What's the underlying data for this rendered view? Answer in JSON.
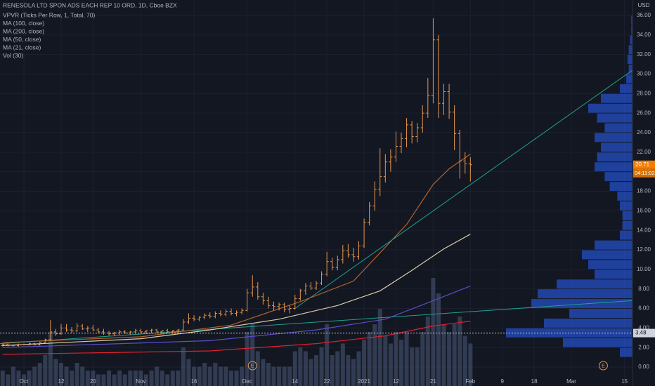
{
  "chart_data": {
    "type": "ohlc",
    "title": "RENESOLA LTD SPON ADS EACH REP 10 ORD, 1D, Cboe BZX",
    "indicators": [
      "VPVR (Ticks Per Row, 1, Total, 70)",
      "MA (100, close)",
      "MA (200, close)",
      "MA (50, close)",
      "MA (21, close)",
      "Vol (30)"
    ],
    "currency": "USD",
    "color": "#e8964a",
    "start_index": -4,
    "ohlc": [
      [
        2.2,
        2.4,
        2.1,
        2.3
      ],
      [
        2.3,
        2.4,
        2.1,
        2.2
      ],
      [
        2.2,
        2.3,
        2.1,
        2.2
      ],
      [
        2.2,
        2.4,
        2.1,
        2.3
      ],
      [
        2.3,
        2.4,
        2.2,
        2.3
      ],
      [
        2.3,
        2.5,
        2.2,
        2.4
      ],
      [
        2.4,
        2.5,
        2.2,
        2.3
      ],
      [
        2.3,
        2.6,
        2.2,
        2.5
      ],
      [
        2.5,
        2.9,
        2.4,
        2.8
      ],
      [
        2.8,
        4.8,
        2.7,
        3.6
      ],
      [
        3.6,
        3.9,
        3.2,
        3.4
      ],
      [
        3.4,
        4.4,
        3.3,
        4.0
      ],
      [
        4.0,
        4.4,
        3.6,
        3.8
      ],
      [
        3.8,
        4.1,
        3.5,
        3.7
      ],
      [
        3.7,
        4.5,
        3.6,
        4.2
      ],
      [
        4.2,
        4.4,
        3.8,
        3.9
      ],
      [
        3.9,
        4.2,
        3.6,
        4.0
      ],
      [
        4.0,
        4.3,
        3.7,
        3.8
      ],
      [
        3.8,
        4.0,
        3.5,
        3.6
      ],
      [
        3.6,
        3.9,
        3.3,
        3.5
      ],
      [
        3.5,
        3.7,
        3.2,
        3.4
      ],
      [
        3.4,
        3.6,
        3.2,
        3.5
      ],
      [
        3.5,
        3.8,
        3.3,
        3.6
      ],
      [
        3.6,
        3.8,
        3.4,
        3.5
      ],
      [
        3.5,
        3.7,
        3.3,
        3.6
      ],
      [
        3.6,
        3.9,
        3.4,
        3.7
      ],
      [
        3.7,
        3.9,
        3.4,
        3.6
      ],
      [
        3.6,
        3.8,
        3.4,
        3.7
      ],
      [
        3.7,
        3.9,
        3.5,
        3.8
      ],
      [
        3.8,
        3.9,
        3.5,
        3.6
      ],
      [
        3.6,
        3.8,
        3.4,
        3.7
      ],
      [
        3.7,
        3.9,
        3.5,
        3.6
      ],
      [
        3.6,
        3.8,
        3.4,
        3.7
      ],
      [
        3.7,
        3.9,
        3.5,
        3.8
      ],
      [
        3.8,
        4.9,
        3.7,
        4.6
      ],
      [
        4.6,
        5.5,
        4.4,
        5.0
      ],
      [
        5.0,
        5.3,
        4.7,
        4.9
      ],
      [
        4.9,
        5.2,
        4.7,
        5.1
      ],
      [
        5.1,
        5.5,
        4.9,
        5.3
      ],
      [
        5.3,
        5.6,
        5.0,
        5.2
      ],
      [
        5.2,
        5.7,
        5.0,
        5.5
      ],
      [
        5.5,
        5.8,
        5.2,
        5.4
      ],
      [
        5.4,
        5.9,
        5.2,
        5.7
      ],
      [
        5.7,
        6.0,
        5.3,
        5.5
      ],
      [
        5.5,
        5.8,
        5.2,
        5.6
      ],
      [
        5.6,
        6.0,
        5.4,
        5.8
      ],
      [
        5.8,
        8.0,
        5.7,
        7.6
      ],
      [
        7.6,
        9.4,
        7.2,
        8.2
      ],
      [
        8.2,
        8.7,
        6.9,
        7.2
      ],
      [
        7.2,
        7.6,
        6.4,
        6.8
      ],
      [
        6.8,
        7.2,
        6.0,
        6.3
      ],
      [
        6.3,
        6.7,
        5.8,
        6.2
      ],
      [
        6.2,
        6.6,
        5.8,
        6.4
      ],
      [
        6.4,
        6.6,
        5.6,
        5.9
      ],
      [
        5.9,
        6.3,
        5.5,
        6.0
      ],
      [
        6.0,
        7.4,
        5.9,
        7.0
      ],
      [
        7.0,
        8.0,
        6.8,
        7.8
      ],
      [
        7.8,
        8.6,
        7.4,
        8.3
      ],
      [
        8.3,
        8.7,
        7.9,
        8.1
      ],
      [
        8.1,
        8.8,
        7.9,
        8.6
      ],
      [
        8.6,
        9.8,
        8.4,
        9.5
      ],
      [
        9.5,
        11.8,
        9.3,
        10.8
      ],
      [
        10.8,
        11.2,
        9.9,
        10.2
      ],
      [
        10.2,
        11.4,
        9.9,
        11.0
      ],
      [
        11.0,
        12.5,
        10.6,
        11.9
      ],
      [
        11.9,
        12.6,
        11.2,
        11.5
      ],
      [
        11.5,
        12.2,
        10.8,
        11.3
      ],
      [
        11.3,
        12.9,
        11.0,
        12.4
      ],
      [
        12.4,
        15.2,
        12.2,
        14.8
      ],
      [
        14.8,
        16.9,
        14.5,
        16.5
      ],
      [
        16.5,
        19.0,
        16.0,
        18.2
      ],
      [
        18.2,
        22.4,
        17.5,
        19.5
      ],
      [
        19.5,
        21.8,
        18.9,
        21.0
      ],
      [
        21.0,
        22.3,
        20.0,
        21.5
      ],
      [
        21.5,
        24.1,
        21.0,
        22.6
      ],
      [
        22.6,
        24.0,
        21.9,
        23.4
      ],
      [
        23.4,
        25.5,
        22.5,
        24.8
      ],
      [
        24.8,
        25.2,
        22.9,
        23.6
      ],
      [
        23.6,
        25.0,
        23.0,
        24.5
      ],
      [
        24.5,
        26.8,
        24.0,
        26.0
      ],
      [
        26.0,
        29.6,
        25.5,
        27.8
      ],
      [
        27.8,
        35.7,
        27.0,
        33.5
      ],
      [
        33.5,
        34.0,
        25.5,
        27.0
      ],
      [
        27.0,
        29.0,
        25.8,
        28.2
      ],
      [
        28.2,
        29.0,
        25.4,
        26.1
      ],
      [
        26.1,
        26.8,
        22.2,
        23.9
      ],
      [
        23.9,
        24.3,
        19.3,
        21.1
      ],
      [
        21.1,
        22.0,
        19.8,
        20.8
      ],
      [
        20.8,
        21.5,
        19.0,
        20.71
      ]
    ],
    "volume": [
      4,
      3,
      5,
      4,
      3,
      4,
      5,
      6,
      8,
      14,
      7,
      6,
      5,
      4,
      6,
      5,
      4,
      4,
      3,
      3,
      4,
      3,
      4,
      3,
      4,
      4,
      4,
      3,
      4,
      5,
      4,
      3,
      4,
      4,
      10,
      7,
      5,
      5,
      6,
      5,
      6,
      5,
      5,
      4,
      4,
      5,
      14,
      16,
      9,
      7,
      6,
      5,
      5,
      5,
      5,
      9,
      10,
      9,
      7,
      8,
      10,
      16,
      8,
      9,
      11,
      8,
      7,
      9,
      12,
      14,
      16,
      20,
      13,
      11,
      14,
      12,
      14,
      10,
      10,
      14,
      18,
      28,
      24,
      16,
      14,
      16,
      18,
      13,
      11
    ],
    "volume_lim": [
      0,
      100
    ],
    "volume_color": "#4a5a78",
    "series": [
      {
        "name": "MA (21, close)",
        "color": "#b5622c",
        "x": [
          -4,
          22,
          39,
          46,
          52,
          62,
          67,
          72,
          77,
          80,
          84
        ],
        "values": [
          2.5,
          3.1,
          4.3,
          5.6,
          6.7,
          8.8,
          11.7,
          14.6,
          18.7,
          20.3,
          21.8
        ]
      },
      {
        "name": "MA (50, close)",
        "color": "#d8ccA6",
        "x": [
          -4,
          22,
          35,
          48,
          59,
          67,
          73,
          79,
          84
        ],
        "values": [
          2.2,
          2.9,
          3.8,
          4.9,
          6.3,
          7.8,
          9.9,
          12.1,
          13.6
        ]
      },
      {
        "name": "MA (100, close)",
        "color": "#5a4ec8",
        "x": [
          -4,
          35,
          55,
          68,
          77,
          84
        ],
        "values": [
          2.0,
          2.7,
          3.8,
          4.9,
          6.8,
          8.3
        ]
      },
      {
        "name": "MA (200, close)",
        "color": "#e0212b",
        "x": [
          -4,
          35,
          55,
          68,
          77,
          84
        ],
        "values": [
          1.3,
          1.65,
          2.4,
          3.2,
          4.2,
          4.7
        ]
      }
    ],
    "trendlines": [
      {
        "color": "#1fa08e",
        "x": [
          51,
          114.5
        ],
        "values": [
          6.0,
          30.4
        ]
      },
      {
        "color": "#1fa08e",
        "x": [
          -4.5,
          114.5
        ],
        "values": [
          2.4,
          6.8
        ]
      }
    ],
    "profile": {
      "bins": [
        1,
        2,
        3,
        4,
        5,
        6,
        7,
        8,
        9,
        10,
        11,
        12,
        13,
        14,
        15,
        16,
        17,
        18,
        19,
        20,
        21,
        22,
        23,
        24,
        25,
        26,
        27,
        28,
        29,
        30,
        31,
        32,
        33,
        34,
        35,
        36
      ],
      "counts": [
        10,
        55,
        100,
        70,
        50,
        80,
        75,
        60,
        30,
        35,
        40,
        30,
        10,
        8,
        8,
        10,
        12,
        18,
        22,
        30,
        28,
        25,
        30,
        22,
        28,
        35,
        25,
        10,
        5,
        3,
        4,
        3,
        2,
        1,
        1
      ],
      "lim": [
        0,
        100
      ],
      "color": "#2962ff"
    },
    "last_price": {
      "value": 20.71,
      "label": "20.71",
      "countdown": "04:11:02",
      "color": "#f57c00"
    },
    "marker_line": {
      "value": 3.48,
      "label": "3.48"
    },
    "xlim": [
      -4.5,
      114.5
    ],
    "xticks": [
      {
        "value": 0,
        "label": "Oct"
      },
      {
        "value": 7,
        "label": "12"
      },
      {
        "value": 13,
        "label": "20"
      },
      {
        "value": 22,
        "label": "Nov"
      },
      {
        "value": 32,
        "label": "16"
      },
      {
        "value": 42,
        "label": "Dec"
      },
      {
        "value": 51,
        "label": "14"
      },
      {
        "value": 57,
        "label": "22"
      },
      {
        "value": 64,
        "label": "2021"
      },
      {
        "value": 70,
        "label": "12"
      },
      {
        "value": 77,
        "label": "21"
      },
      {
        "value": 84,
        "label": "Feb"
      },
      {
        "value": 90,
        "label": "9"
      },
      {
        "value": 96,
        "label": "18"
      },
      {
        "value": 103,
        "label": "Mar"
      },
      {
        "value": 113,
        "label": "15"
      }
    ],
    "ylim": [
      -1.94,
      37.58
    ],
    "yticks": [
      {
        "value": 0,
        "label": "0.00"
      },
      {
        "value": 2,
        "label": "2.00"
      },
      {
        "value": 4,
        "label": "4.00"
      },
      {
        "value": 6,
        "label": "6.00"
      },
      {
        "value": 8,
        "label": "8.00"
      },
      {
        "value": 10,
        "label": "10.00"
      },
      {
        "value": 12,
        "label": "12.00"
      },
      {
        "value": 14,
        "label": "14.00"
      },
      {
        "value": 16,
        "label": "16.00"
      },
      {
        "value": 18,
        "label": "18.00"
      },
      {
        "value": 20,
        "label": "20.00"
      },
      {
        "value": 22,
        "label": "22.00"
      },
      {
        "value": 24,
        "label": "24.00"
      },
      {
        "value": 26,
        "label": "26.00"
      },
      {
        "value": 28,
        "label": "28.00"
      },
      {
        "value": 30,
        "label": "30.00"
      },
      {
        "value": 32,
        "label": "32.00"
      },
      {
        "value": 34,
        "label": "34.00"
      },
      {
        "value": 36,
        "label": "36.00"
      }
    ],
    "earnings": [
      {
        "x": 43,
        "label": "E"
      },
      {
        "x": 109,
        "label": "E"
      }
    ]
  }
}
